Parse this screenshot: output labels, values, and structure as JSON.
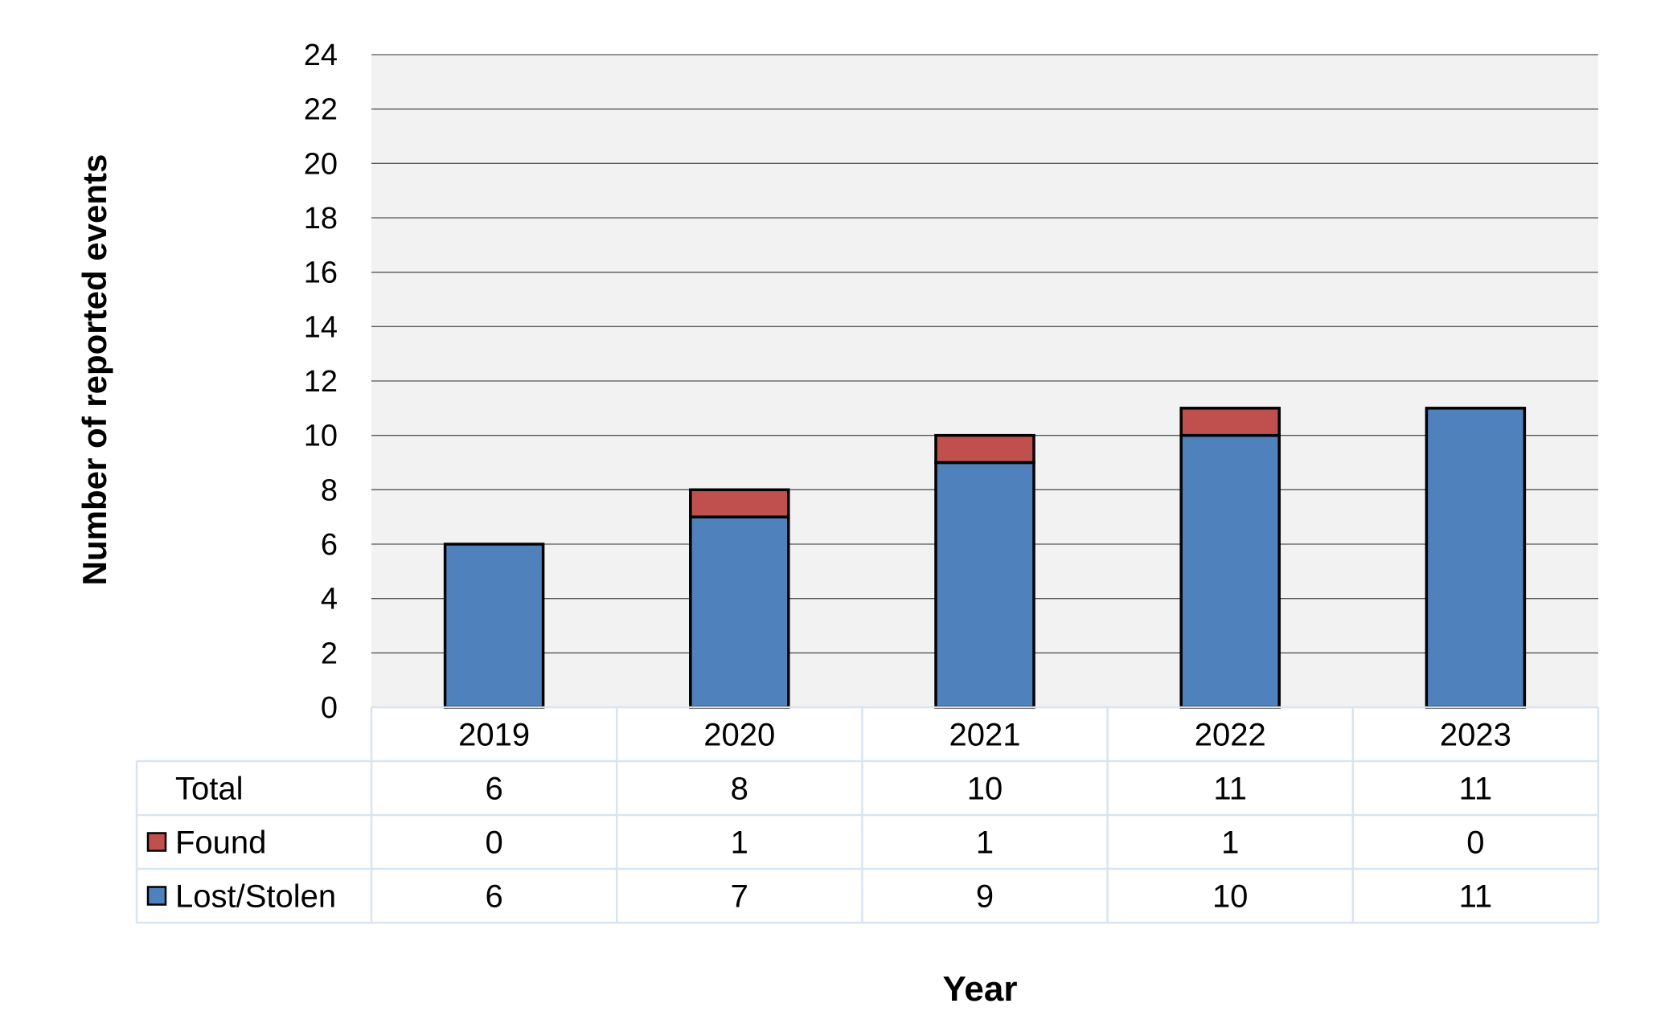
{
  "chart_data": {
    "type": "bar",
    "stacked": true,
    "categories": [
      "2019",
      "2020",
      "2021",
      "2022",
      "2023"
    ],
    "series": [
      {
        "name": "Lost/Stolen",
        "values": [
          6,
          7,
          9,
          10,
          11
        ],
        "color": "#4f81bd"
      },
      {
        "name": "Found",
        "values": [
          0,
          1,
          1,
          1,
          0
        ],
        "color": "#c0504d"
      }
    ],
    "totals": {
      "label": "Total",
      "values": [
        6,
        8,
        10,
        11,
        11
      ]
    },
    "xlabel": "Year",
    "ylabel": "Number of reported events",
    "ylim": [
      0,
      24
    ],
    "yticks": [
      "0",
      "2",
      "4",
      "6",
      "8",
      "10",
      "12",
      "14",
      "16",
      "18",
      "20",
      "22",
      "24"
    ],
    "grid": true,
    "legend": "data-table",
    "plot_background": "#f2f2f2",
    "table_border_color": "#d9e4f1"
  }
}
